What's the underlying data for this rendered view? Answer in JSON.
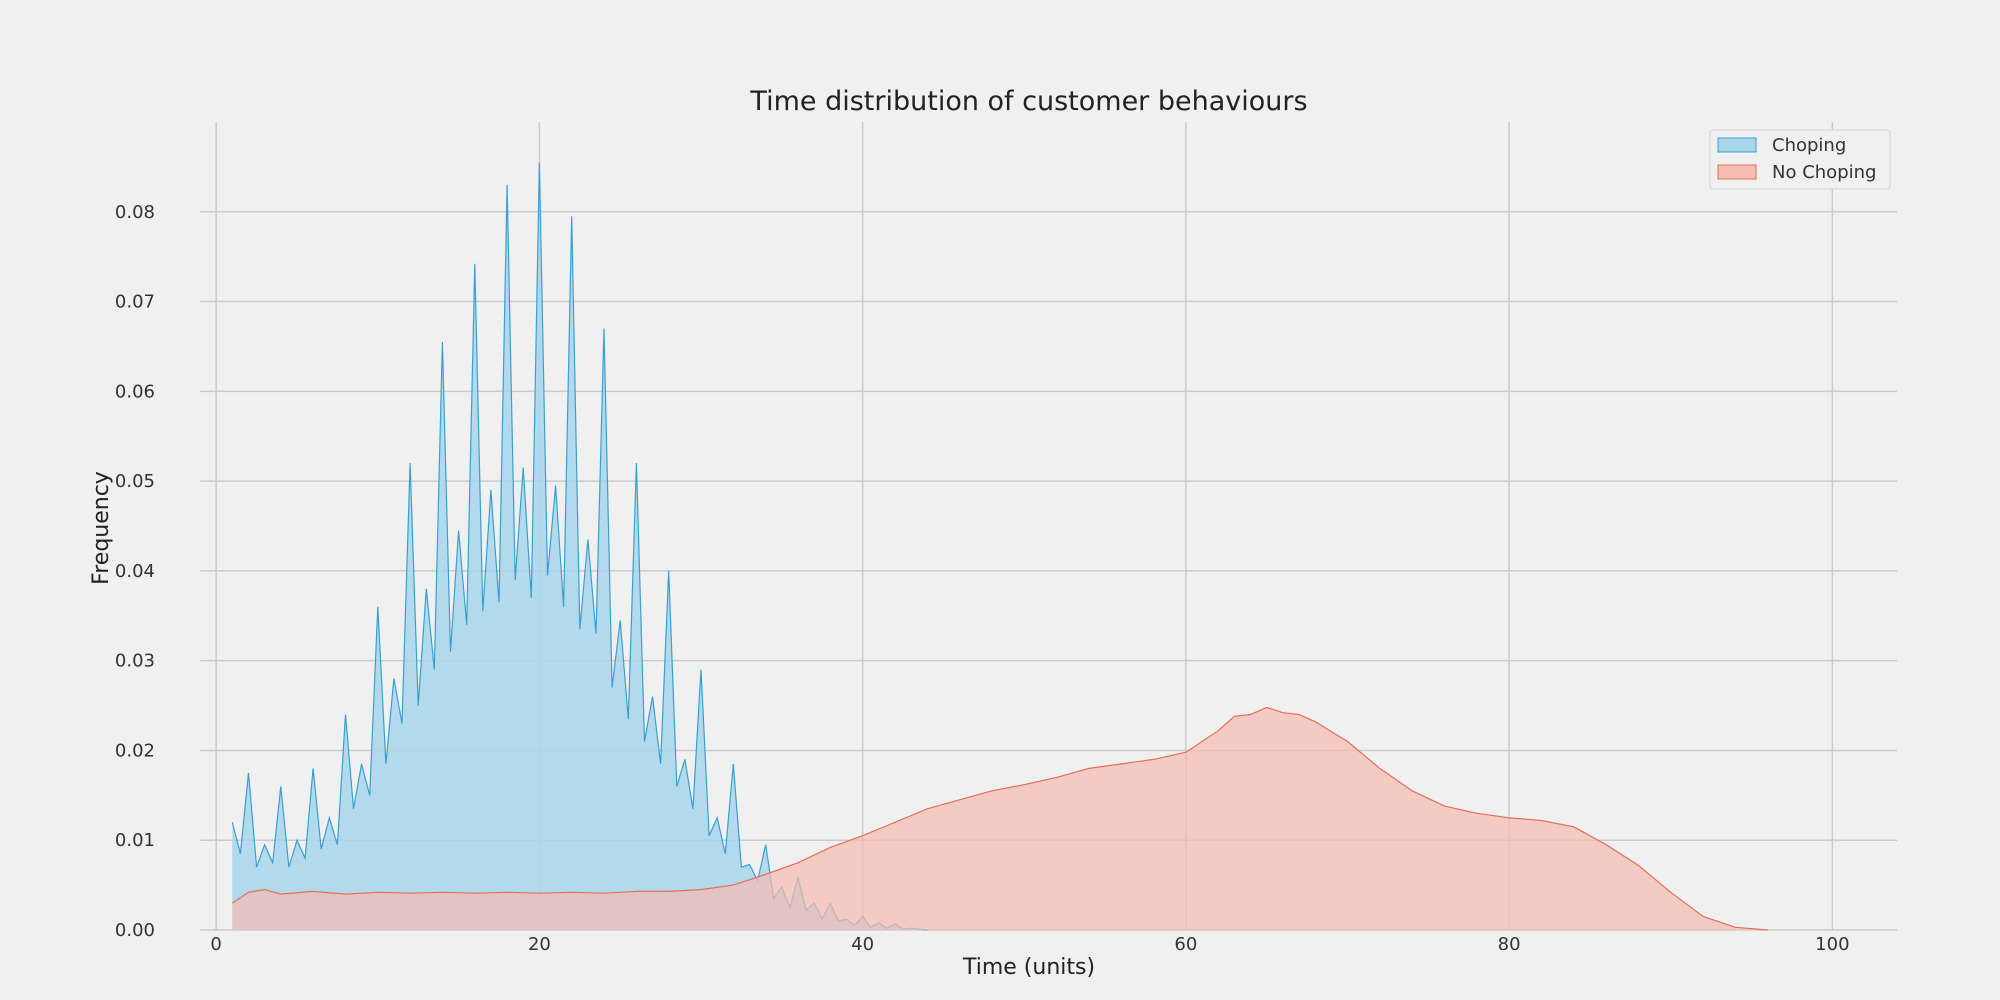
{
  "chart_data": {
    "type": "area",
    "title": "Time distribution of customer behaviours",
    "xlabel": "Time (units)",
    "ylabel": "Frequency",
    "xlim": [
      -1,
      104
    ],
    "ylim": [
      0,
      0.09
    ],
    "x_ticks": [
      0,
      20,
      40,
      60,
      80,
      100
    ],
    "y_ticks": [
      0.0,
      0.01,
      0.02,
      0.03,
      0.04,
      0.05,
      0.06,
      0.07,
      0.08
    ],
    "grid": true,
    "legend_position": "top-right",
    "series": [
      {
        "name": "Choping",
        "fill": "#a9d5ea",
        "stroke": "#3aa0d2",
        "x": [
          1,
          1.5,
          2,
          2.5,
          3,
          3.5,
          4,
          4.5,
          5,
          5.5,
          6,
          6.5,
          7,
          7.5,
          8,
          8.5,
          9,
          9.5,
          10,
          10.5,
          11,
          11.5,
          12,
          12.5,
          13,
          13.5,
          14,
          14.5,
          15,
          15.5,
          16,
          16.5,
          17,
          17.5,
          18,
          18.5,
          19,
          19.5,
          20,
          20.5,
          21,
          21.5,
          22,
          22.5,
          23,
          23.5,
          24,
          24.5,
          25,
          25.5,
          26,
          26.5,
          27,
          27.5,
          28,
          28.5,
          29,
          29.5,
          30,
          30.5,
          31,
          31.5,
          32,
          32.5,
          33,
          33.5,
          34,
          34.5,
          35,
          35.5,
          36,
          36.5,
          37,
          37.5,
          38,
          38.5,
          39,
          39.5,
          40,
          40.5,
          41,
          41.5,
          42,
          42.5,
          43,
          44
        ],
        "values": [
          0.012,
          0.0085,
          0.0175,
          0.007,
          0.0095,
          0.0075,
          0.016,
          0.007,
          0.01,
          0.008,
          0.018,
          0.009,
          0.0125,
          0.0095,
          0.024,
          0.0135,
          0.0185,
          0.015,
          0.036,
          0.0185,
          0.028,
          0.023,
          0.052,
          0.025,
          0.038,
          0.029,
          0.0655,
          0.031,
          0.0445,
          0.034,
          0.0742,
          0.0355,
          0.049,
          0.0365,
          0.083,
          0.039,
          0.0515,
          0.037,
          0.0855,
          0.0395,
          0.0495,
          0.036,
          0.0795,
          0.0335,
          0.0435,
          0.033,
          0.067,
          0.027,
          0.0345,
          0.0235,
          0.052,
          0.021,
          0.026,
          0.0185,
          0.04,
          0.016,
          0.019,
          0.0135,
          0.029,
          0.0105,
          0.0125,
          0.0085,
          0.0185,
          0.007,
          0.0073,
          0.0055,
          0.0095,
          0.0035,
          0.0048,
          0.0025,
          0.0058,
          0.0022,
          0.003,
          0.0012,
          0.003,
          0.001,
          0.0012,
          0.0005,
          0.0015,
          0.0003,
          0.0008,
          0.0002,
          0.0007,
          0.0001,
          0.0002,
          0.0
        ]
      },
      {
        "name": "No Choping",
        "fill": "#f4bcb2",
        "stroke": "#e3705a",
        "x": [
          1,
          2,
          3,
          4,
          6,
          8,
          10,
          12,
          14,
          16,
          18,
          20,
          22,
          24,
          26,
          28,
          30,
          32,
          34,
          36,
          38,
          40,
          42,
          44,
          46,
          48,
          50,
          52,
          54,
          56,
          58,
          60,
          61,
          62,
          63,
          64,
          65,
          66,
          67,
          68,
          70,
          72,
          74,
          76,
          78,
          80,
          82,
          84,
          86,
          88,
          90,
          92,
          94,
          96
        ],
        "values": [
          0.003,
          0.0042,
          0.0045,
          0.004,
          0.0043,
          0.004,
          0.0042,
          0.0041,
          0.0042,
          0.0041,
          0.0042,
          0.0041,
          0.0042,
          0.0041,
          0.0043,
          0.0043,
          0.0045,
          0.005,
          0.0062,
          0.0075,
          0.0092,
          0.0105,
          0.012,
          0.0135,
          0.0145,
          0.0155,
          0.0162,
          0.017,
          0.018,
          0.0185,
          0.019,
          0.0198,
          0.021,
          0.0222,
          0.0238,
          0.024,
          0.0248,
          0.0242,
          0.024,
          0.0232,
          0.021,
          0.018,
          0.0155,
          0.0138,
          0.013,
          0.0125,
          0.0122,
          0.0115,
          0.0095,
          0.0072,
          0.0042,
          0.0015,
          0.0003,
          0.0
        ]
      }
    ]
  }
}
